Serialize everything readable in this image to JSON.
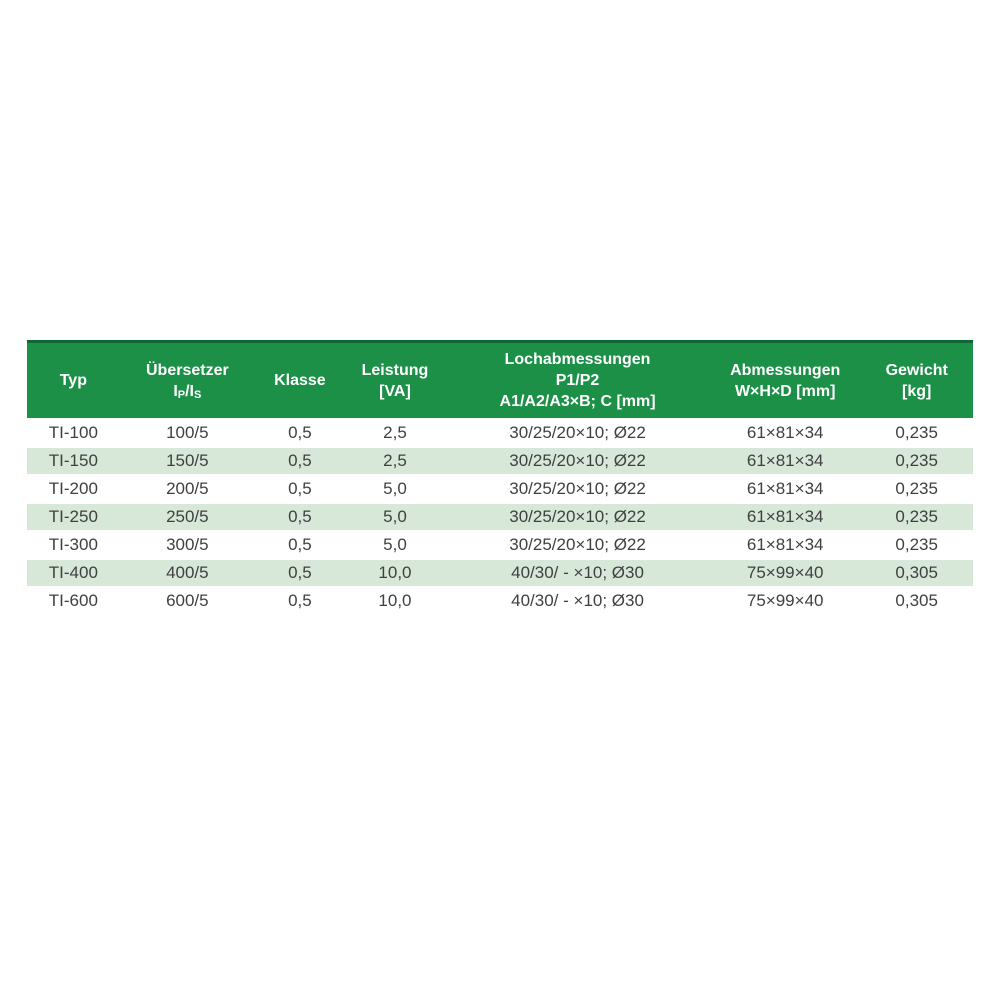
{
  "colors": {
    "header_bg": "#1d9048",
    "header_top_border": "#0e6632",
    "row_alt_bg": "#d7e8d8",
    "header_text": "#ffffff",
    "body_text": "#404040"
  },
  "table": {
    "columns": [
      {
        "id": "typ",
        "lines": [
          "Typ"
        ],
        "width_pct": 9.8
      },
      {
        "id": "uebersetzer",
        "lines": [
          "Übersetzer",
          [
            {
              "t": "I"
            },
            {
              "t": "P",
              "sub": true
            },
            {
              "t": "/I"
            },
            {
              "t": "S",
              "sub": true
            }
          ]
        ],
        "width_pct": 14.3
      },
      {
        "id": "klasse",
        "lines": [
          "Klasse"
        ],
        "width_pct": 9.5
      },
      {
        "id": "leistung",
        "lines": [
          "Leistung",
          "[VA]"
        ],
        "width_pct": 10.6
      },
      {
        "id": "lochabmessungen",
        "lines": [
          "Lochabmessungen",
          "P1/P2",
          "A1/A2/A3×B; C [mm]"
        ],
        "width_pct": 28.0
      },
      {
        "id": "abmessungen",
        "lines": [
          "Abmessungen",
          "W×H×D [mm]"
        ],
        "width_pct": 15.9
      },
      {
        "id": "gewicht",
        "lines": [
          "Gewicht",
          "[kg]"
        ],
        "width_pct": 11.9
      }
    ],
    "rows": [
      [
        "TI-100",
        "100/5",
        "0,5",
        "2,5",
        "30/25/20×10; Ø22",
        "61×81×34",
        "0,235"
      ],
      [
        "TI-150",
        "150/5",
        "0,5",
        "2,5",
        "30/25/20×10; Ø22",
        "61×81×34",
        "0,235"
      ],
      [
        "TI-200",
        "200/5",
        "0,5",
        "5,0",
        "30/25/20×10; Ø22",
        "61×81×34",
        "0,235"
      ],
      [
        "TI-250",
        "250/5",
        "0,5",
        "5,0",
        "30/25/20×10; Ø22",
        "61×81×34",
        "0,235"
      ],
      [
        "TI-300",
        "300/5",
        "0,5",
        "5,0",
        "30/25/20×10; Ø22",
        "61×81×34",
        "0,235"
      ],
      [
        "TI-400",
        "400/5",
        "0,5",
        "10,0",
        "40/30/ - ×10; Ø30",
        "75×99×40",
        "0,305"
      ],
      [
        "TI-600",
        "600/5",
        "0,5",
        "10,0",
        "40/30/ - ×10; Ø30",
        "75×99×40",
        "0,305"
      ]
    ]
  }
}
